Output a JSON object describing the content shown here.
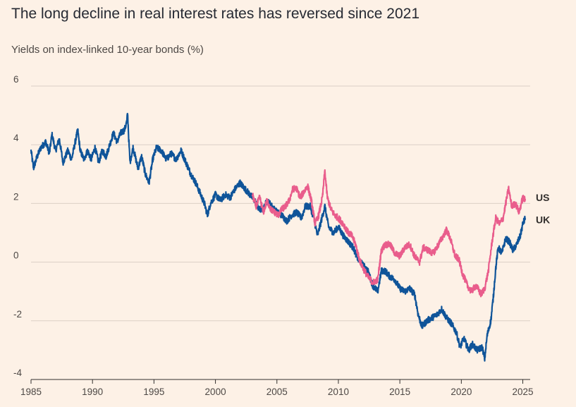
{
  "chart_data": {
    "type": "line",
    "title": "The long decline in real interest rates has reversed since 2021",
    "subtitle": "Yields on index-linked 10-year bonds (%)",
    "xlabel": "",
    "ylabel": "",
    "xlim": [
      1985,
      2025.6
    ],
    "ylim": [
      -4,
      6
    ],
    "x_ticks": [
      1985,
      1990,
      1995,
      2000,
      2005,
      2010,
      2015,
      2020,
      2025
    ],
    "y_ticks": [
      6,
      4,
      2,
      0,
      -2,
      -4
    ],
    "y_tick_labels": [
      "6",
      "4",
      "2",
      "0",
      "-2",
      "-4"
    ],
    "grid": true,
    "series": [
      {
        "name": "UK",
        "label": "UK",
        "color": "#0f5499",
        "points": [
          [
            1985.0,
            3.8
          ],
          [
            1985.2,
            3.2
          ],
          [
            1985.5,
            3.6
          ],
          [
            1985.8,
            3.9
          ],
          [
            1986.2,
            4.1
          ],
          [
            1986.5,
            3.7
          ],
          [
            1986.7,
            4.35
          ],
          [
            1987.0,
            3.8
          ],
          [
            1987.3,
            4.2
          ],
          [
            1987.6,
            3.4
          ],
          [
            1988.0,
            3.8
          ],
          [
            1988.3,
            3.5
          ],
          [
            1988.6,
            4.1
          ],
          [
            1988.8,
            4.5
          ],
          [
            1989.0,
            3.8
          ],
          [
            1989.3,
            3.5
          ],
          [
            1989.6,
            3.8
          ],
          [
            1989.9,
            3.5
          ],
          [
            1990.2,
            3.9
          ],
          [
            1990.5,
            3.4
          ],
          [
            1990.8,
            3.8
          ],
          [
            1991.1,
            3.6
          ],
          [
            1991.4,
            4.0
          ],
          [
            1991.7,
            4.4
          ],
          [
            1992.0,
            4.1
          ],
          [
            1992.3,
            4.4
          ],
          [
            1992.6,
            4.5
          ],
          [
            1992.8,
            4.8
          ],
          [
            1992.85,
            5.1
          ],
          [
            1992.95,
            4.2
          ],
          [
            1993.05,
            3.4
          ],
          [
            1993.3,
            3.9
          ],
          [
            1993.7,
            3.2
          ],
          [
            1994.0,
            3.6
          ],
          [
            1994.3,
            3.0
          ],
          [
            1994.6,
            2.7
          ],
          [
            1994.9,
            3.5
          ],
          [
            1995.2,
            3.9
          ],
          [
            1995.6,
            3.8
          ],
          [
            1996.0,
            3.5
          ],
          [
            1996.4,
            3.7
          ],
          [
            1996.8,
            3.5
          ],
          [
            1997.2,
            3.8
          ],
          [
            1997.6,
            3.4
          ],
          [
            1998.0,
            3.0
          ],
          [
            1998.4,
            2.7
          ],
          [
            1998.8,
            2.3
          ],
          [
            1999.1,
            2.0
          ],
          [
            1999.35,
            1.6
          ],
          [
            1999.6,
            2.0
          ],
          [
            2000.0,
            2.3
          ],
          [
            2000.4,
            2.1
          ],
          [
            2000.8,
            2.3
          ],
          [
            2001.2,
            2.2
          ],
          [
            2001.6,
            2.5
          ],
          [
            2002.0,
            2.7
          ],
          [
            2002.4,
            2.5
          ],
          [
            2002.8,
            2.3
          ],
          [
            2003.2,
            2.1
          ],
          [
            2003.5,
            1.8
          ],
          [
            2003.9,
            1.8
          ],
          [
            2004.2,
            2.1
          ],
          [
            2004.6,
            1.9
          ],
          [
            2005.0,
            1.7
          ],
          [
            2005.4,
            1.6
          ],
          [
            2005.8,
            1.4
          ],
          [
            2006.2,
            1.6
          ],
          [
            2006.6,
            1.7
          ],
          [
            2007.0,
            1.5
          ],
          [
            2007.3,
            1.9
          ],
          [
            2007.7,
            1.9
          ],
          [
            2008.0,
            1.5
          ],
          [
            2008.3,
            0.9
          ],
          [
            2008.6,
            1.4
          ],
          [
            2008.9,
            1.9
          ],
          [
            2009.2,
            1.2
          ],
          [
            2009.6,
            1.0
          ],
          [
            2010.0,
            1.2
          ],
          [
            2010.4,
            0.9
          ],
          [
            2010.8,
            0.7
          ],
          [
            2011.2,
            0.5
          ],
          [
            2011.6,
            0.1
          ],
          [
            2012.0,
            -0.1
          ],
          [
            2012.4,
            -0.3
          ],
          [
            2012.8,
            -0.8
          ],
          [
            2013.2,
            -1.0
          ],
          [
            2013.5,
            -0.3
          ],
          [
            2013.8,
            -0.3
          ],
          [
            2014.2,
            -0.5
          ],
          [
            2014.6,
            -0.6
          ],
          [
            2015.0,
            -0.9
          ],
          [
            2015.4,
            -1.0
          ],
          [
            2015.8,
            -0.9
          ],
          [
            2016.2,
            -1.1
          ],
          [
            2016.5,
            -1.8
          ],
          [
            2016.8,
            -2.2
          ],
          [
            2017.2,
            -2.0
          ],
          [
            2017.6,
            -1.9
          ],
          [
            2018.0,
            -1.8
          ],
          [
            2018.4,
            -1.6
          ],
          [
            2018.8,
            -1.9
          ],
          [
            2019.2,
            -2.1
          ],
          [
            2019.6,
            -2.4
          ],
          [
            2019.9,
            -2.9
          ],
          [
            2020.2,
            -2.6
          ],
          [
            2020.6,
            -3.0
          ],
          [
            2020.9,
            -2.8
          ],
          [
            2021.3,
            -3.0
          ],
          [
            2021.7,
            -2.9
          ],
          [
            2021.9,
            -3.3
          ],
          [
            2022.1,
            -2.5
          ],
          [
            2022.4,
            -2.0
          ],
          [
            2022.6,
            -1.2
          ],
          [
            2022.8,
            -0.2
          ],
          [
            2023.0,
            0.5
          ],
          [
            2023.3,
            0.3
          ],
          [
            2023.6,
            0.8
          ],
          [
            2023.9,
            0.7
          ],
          [
            2024.2,
            0.4
          ],
          [
            2024.5,
            0.6
          ],
          [
            2024.8,
            0.9
          ],
          [
            2025.0,
            1.3
          ],
          [
            2025.2,
            1.5
          ]
        ]
      },
      {
        "name": "US",
        "label": "US",
        "color": "#e95d8c",
        "points": [
          [
            2003.0,
            2.3
          ],
          [
            2003.3,
            1.9
          ],
          [
            2003.6,
            2.2
          ],
          [
            2003.9,
            1.7
          ],
          [
            2004.2,
            2.1
          ],
          [
            2004.5,
            1.8
          ],
          [
            2004.8,
            1.7
          ],
          [
            2005.1,
            1.6
          ],
          [
            2005.4,
            1.8
          ],
          [
            2005.7,
            1.9
          ],
          [
            2006.0,
            2.1
          ],
          [
            2006.3,
            2.5
          ],
          [
            2006.6,
            2.5
          ],
          [
            2006.9,
            2.2
          ],
          [
            2007.2,
            2.4
          ],
          [
            2007.5,
            2.6
          ],
          [
            2007.8,
            2.1
          ],
          [
            2008.1,
            1.3
          ],
          [
            2008.4,
            1.6
          ],
          [
            2008.7,
            2.2
          ],
          [
            2008.9,
            3.1
          ],
          [
            2009.1,
            2.2
          ],
          [
            2009.4,
            1.8
          ],
          [
            2009.7,
            1.6
          ],
          [
            2010.0,
            1.5
          ],
          [
            2010.4,
            1.3
          ],
          [
            2010.8,
            1.0
          ],
          [
            2011.1,
            0.9
          ],
          [
            2011.4,
            0.6
          ],
          [
            2011.7,
            0.1
          ],
          [
            2012.0,
            -0.2
          ],
          [
            2012.4,
            -0.5
          ],
          [
            2012.8,
            -0.7
          ],
          [
            2013.2,
            -0.6
          ],
          [
            2013.5,
            0.4
          ],
          [
            2013.8,
            0.6
          ],
          [
            2014.2,
            0.6
          ],
          [
            2014.6,
            0.3
          ],
          [
            2015.0,
            0.2
          ],
          [
            2015.4,
            0.5
          ],
          [
            2015.8,
            0.6
          ],
          [
            2016.2,
            0.2
          ],
          [
            2016.6,
            0.0
          ],
          [
            2016.9,
            0.5
          ],
          [
            2017.3,
            0.4
          ],
          [
            2017.7,
            0.3
          ],
          [
            2018.0,
            0.5
          ],
          [
            2018.4,
            0.8
          ],
          [
            2018.8,
            1.1
          ],
          [
            2019.1,
            0.8
          ],
          [
            2019.5,
            0.2
          ],
          [
            2019.8,
            0.1
          ],
          [
            2020.1,
            -0.4
          ],
          [
            2020.5,
            -0.8
          ],
          [
            2020.8,
            -1.0
          ],
          [
            2021.2,
            -0.8
          ],
          [
            2021.6,
            -1.1
          ],
          [
            2021.9,
            -0.9
          ],
          [
            2022.2,
            -0.3
          ],
          [
            2022.5,
            0.7
          ],
          [
            2022.8,
            1.5
          ],
          [
            2023.1,
            1.3
          ],
          [
            2023.4,
            1.5
          ],
          [
            2023.7,
            2.2
          ],
          [
            2023.85,
            2.5
          ],
          [
            2024.1,
            1.9
          ],
          [
            2024.4,
            2.0
          ],
          [
            2024.7,
            1.7
          ],
          [
            2025.0,
            2.2
          ],
          [
            2025.2,
            2.1
          ]
        ]
      }
    ]
  }
}
